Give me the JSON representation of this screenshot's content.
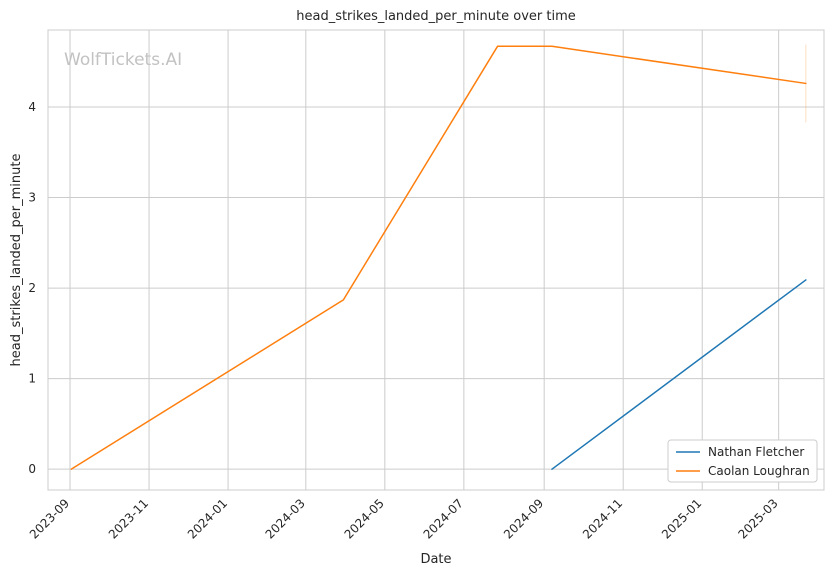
{
  "chart_data": {
    "type": "line",
    "title": "head_strikes_landed_per_minute over time",
    "xlabel": "Date",
    "ylabel": "head_strikes_landed_per_minute",
    "watermark": "WolfTickets.AI",
    "x_range": [
      "2023-08-15",
      "2025-04-05"
    ],
    "y_range": [
      -0.23,
      4.85
    ],
    "x_ticks": [
      "2023-09",
      "2023-11",
      "2024-01",
      "2024-03",
      "2024-05",
      "2024-07",
      "2024-09",
      "2024-11",
      "2025-01",
      "2025-03"
    ],
    "y_ticks": [
      0,
      1,
      2,
      3,
      4
    ],
    "grid": true,
    "legend_position": "bottom-right",
    "series": [
      {
        "name": "Nathan Fletcher",
        "color": "#1f77b4",
        "points": [
          {
            "x": "2024-09-07",
            "y": 0.0
          },
          {
            "x": "2025-03-22",
            "y": 2.09
          }
        ]
      },
      {
        "name": "Caolan Loughran",
        "color": "#ff7f0e",
        "points": [
          {
            "x": "2023-09-02",
            "y": 0.0
          },
          {
            "x": "2024-03-30",
            "y": 1.87
          },
          {
            "x": "2024-07-27",
            "y": 4.67
          },
          {
            "x": "2024-09-07",
            "y": 4.67
          },
          {
            "x": "2025-03-22",
            "y": 4.26
          }
        ],
        "error_band": {
          "x": "2025-03-22",
          "low": 3.83,
          "high": 4.69
        }
      }
    ]
  }
}
